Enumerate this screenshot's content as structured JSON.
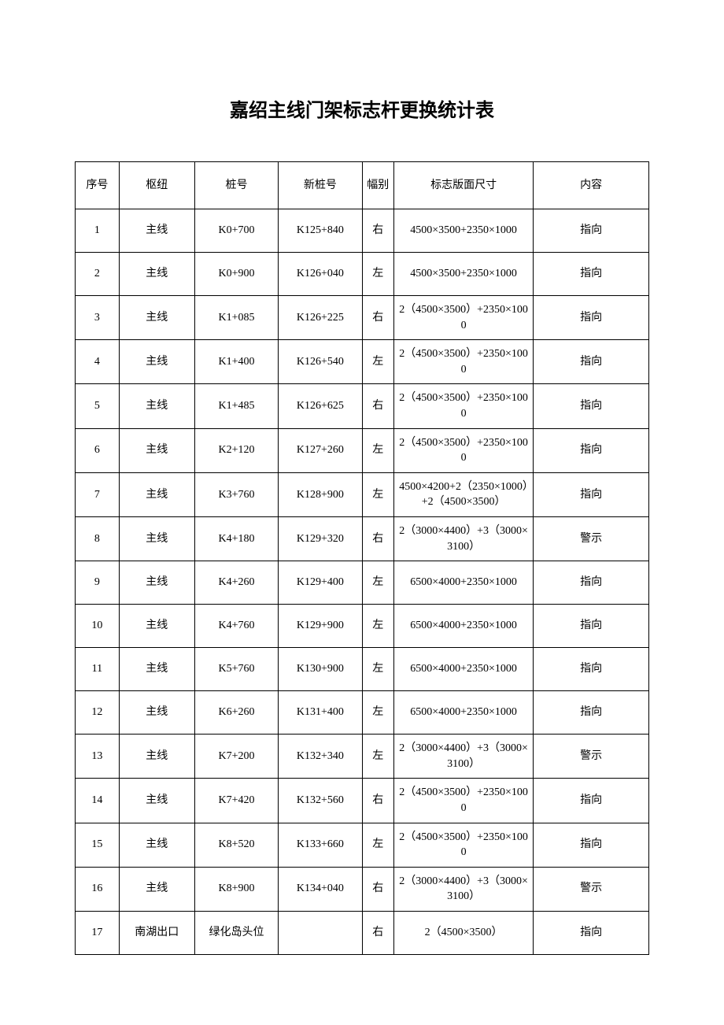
{
  "title": "嘉绍主线门架标志杆更换统计表",
  "table": {
    "headers": {
      "seq": "序号",
      "hub": "枢纽",
      "stake": "桩号",
      "newstake": "新桩号",
      "side": "幅别",
      "dim": "标志版面尺寸",
      "content": "内容"
    },
    "rows": [
      {
        "seq": "1",
        "hub": "主线",
        "stake": "K0+700",
        "newstake": "K125+840",
        "side": "右",
        "dim": "4500×3500+2350×1000",
        "content": "指向"
      },
      {
        "seq": "2",
        "hub": "主线",
        "stake": "K0+900",
        "newstake": "K126+040",
        "side": "左",
        "dim": "4500×3500+2350×1000",
        "content": "指向"
      },
      {
        "seq": "3",
        "hub": "主线",
        "stake": "K1+085",
        "newstake": "K126+225",
        "side": "右",
        "dim": "2（4500×3500）+2350×1000",
        "content": "指向"
      },
      {
        "seq": "4",
        "hub": "主线",
        "stake": "K1+400",
        "newstake": "K126+540",
        "side": "左",
        "dim": "2（4500×3500）+2350×1000",
        "content": "指向"
      },
      {
        "seq": "5",
        "hub": "主线",
        "stake": "K1+485",
        "newstake": "K126+625",
        "side": "右",
        "dim": "2（4500×3500）+2350×1000",
        "content": "指向"
      },
      {
        "seq": "6",
        "hub": "主线",
        "stake": "K2+120",
        "newstake": "K127+260",
        "side": "左",
        "dim": "2（4500×3500）+2350×1000",
        "content": "指向"
      },
      {
        "seq": "7",
        "hub": "主线",
        "stake": "K3+760",
        "newstake": "K128+900",
        "side": "左",
        "dim": "4500×4200+2（2350×1000）+2（4500×3500）",
        "content": "指向"
      },
      {
        "seq": "8",
        "hub": "主线",
        "stake": "K4+180",
        "newstake": "K129+320",
        "side": "右",
        "dim": "2（3000×4400）+3（3000×3100）",
        "content": "警示"
      },
      {
        "seq": "9",
        "hub": "主线",
        "stake": "K4+260",
        "newstake": "K129+400",
        "side": "左",
        "dim": "6500×4000+2350×1000",
        "content": "指向"
      },
      {
        "seq": "10",
        "hub": "主线",
        "stake": "K4+760",
        "newstake": "K129+900",
        "side": "左",
        "dim": "6500×4000+2350×1000",
        "content": "指向"
      },
      {
        "seq": "11",
        "hub": "主线",
        "stake": "K5+760",
        "newstake": "K130+900",
        "side": "左",
        "dim": "6500×4000+2350×1000",
        "content": "指向"
      },
      {
        "seq": "12",
        "hub": "主线",
        "stake": "K6+260",
        "newstake": "K131+400",
        "side": "左",
        "dim": "6500×4000+2350×1000",
        "content": "指向"
      },
      {
        "seq": "13",
        "hub": "主线",
        "stake": "K7+200",
        "newstake": "K132+340",
        "side": "左",
        "dim": "2（3000×4400）+3（3000×3100）",
        "content": "警示"
      },
      {
        "seq": "14",
        "hub": "主线",
        "stake": "K7+420",
        "newstake": "K132+560",
        "side": "右",
        "dim": "2（4500×3500）+2350×1000",
        "content": "指向"
      },
      {
        "seq": "15",
        "hub": "主线",
        "stake": "K8+520",
        "newstake": "K133+660",
        "side": "左",
        "dim": "2（4500×3500）+2350×1000",
        "content": "指向"
      },
      {
        "seq": "16",
        "hub": "主线",
        "stake": "K8+900",
        "newstake": "K134+040",
        "side": "右",
        "dim": "2（3000×4400）+3（3000×3100）",
        "content": "警示"
      },
      {
        "seq": "17",
        "hub": "南湖出口",
        "stake": "绿化岛头位",
        "newstake": "",
        "side": "右",
        "dim": "2（4500×3500）",
        "content": "指向"
      }
    ]
  }
}
